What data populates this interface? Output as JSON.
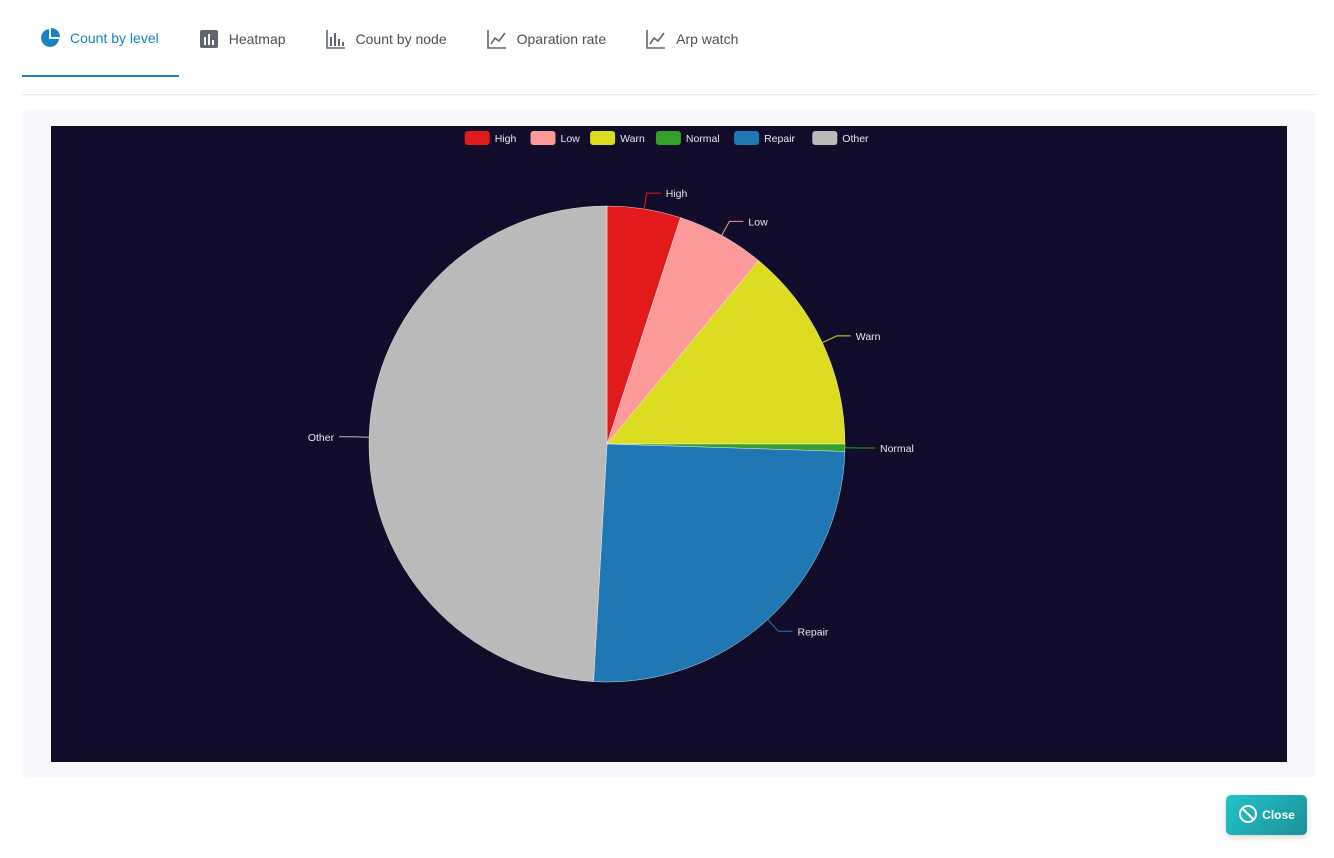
{
  "tabs": [
    {
      "label": "Count by level",
      "icon": "pie-chart-icon",
      "active": true
    },
    {
      "label": "Heatmap",
      "icon": "bar-chart-icon",
      "active": false
    },
    {
      "label": "Count by node",
      "icon": "histogram-icon",
      "active": false
    },
    {
      "label": "Oparation rate",
      "icon": "line-chart-icon",
      "active": false
    },
    {
      "label": "Arp watch",
      "icon": "line-chart-icon",
      "active": false
    }
  ],
  "close_button": {
    "label": "Close",
    "icon": "ban-icon"
  },
  "colors": {
    "accent": "#1a82c4",
    "chart_background": "#110c2a",
    "close_button": "#1ea8b0"
  },
  "chart_data": {
    "type": "pie",
    "legend_position": "top-center",
    "labels_position": "outside-with-leader-lines",
    "slices": [
      {
        "label": "High",
        "value": 5.0,
        "color": "#e31a1c"
      },
      {
        "label": "Low",
        "value": 6.0,
        "color": "#fb9a99"
      },
      {
        "label": "Warn",
        "value": 14.0,
        "color": "#dcdc20"
      },
      {
        "label": "Normal",
        "value": 0.5,
        "color": "#33a02c"
      },
      {
        "label": "Repair",
        "value": 25.4,
        "color": "#1f78b4"
      },
      {
        "label": "Other",
        "value": 49.1,
        "color": "#bababa"
      }
    ]
  }
}
